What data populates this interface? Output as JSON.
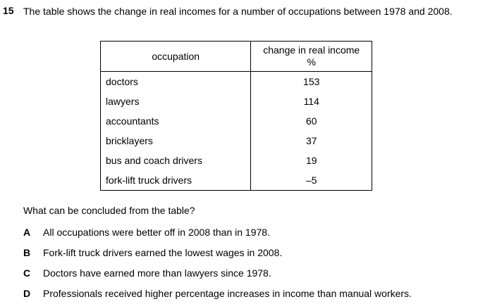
{
  "question": {
    "number": "15",
    "stem": "The table shows the change in real incomes for a number of occupations between 1978 and 2008."
  },
  "table": {
    "header_occupation": "occupation",
    "header_change_line1": "change in real income",
    "header_change_line2": "%",
    "rows": [
      {
        "occupation": "doctors",
        "change": "153"
      },
      {
        "occupation": "lawyers",
        "change": "114"
      },
      {
        "occupation": "accountants",
        "change": "60"
      },
      {
        "occupation": "bricklayers",
        "change": "37"
      },
      {
        "occupation": "bus and coach drivers",
        "change": "19"
      },
      {
        "occupation": "fork-lift truck drivers",
        "change": "–5"
      }
    ]
  },
  "prompt": "What can be concluded from the table?",
  "options": [
    {
      "letter": "A",
      "text": "All occupations were better off in 2008 than in 1978."
    },
    {
      "letter": "B",
      "text": "Fork-lift truck drivers earned the lowest wages in 2008."
    },
    {
      "letter": "C",
      "text": "Doctors have earned more than lawyers since 1978."
    },
    {
      "letter": "D",
      "text": "Professionals received higher percentage increases in income than manual workers."
    }
  ]
}
